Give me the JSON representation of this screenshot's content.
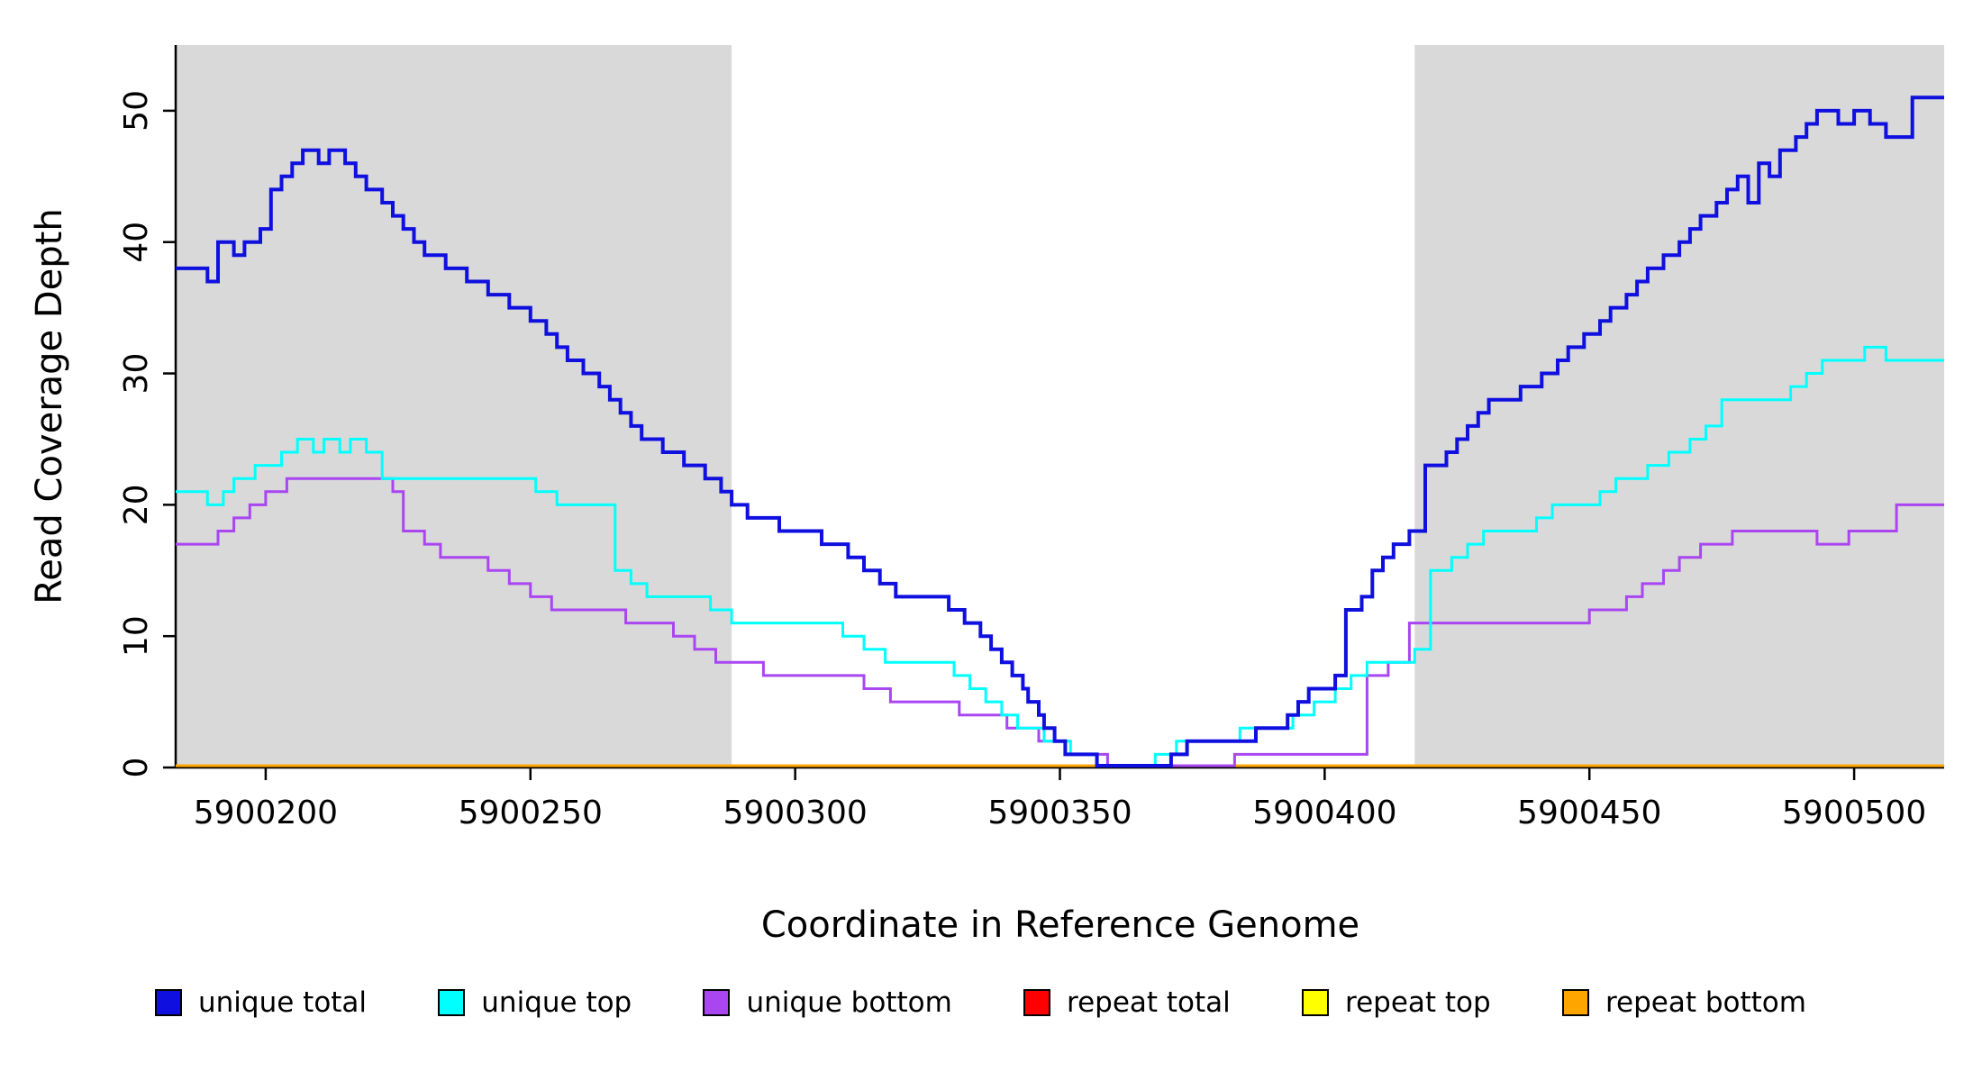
{
  "chart_data": {
    "type": "line",
    "style": "step",
    "title": "",
    "xlabel": "Coordinate in Reference Genome",
    "ylabel": "Read Coverage Depth",
    "xlim": [
      5900183,
      5900517
    ],
    "ylim": [
      0,
      55
    ],
    "x_ticks": [
      5900200,
      5900250,
      5900300,
      5900350,
      5900400,
      5900450,
      5900500
    ],
    "y_ticks": [
      0,
      10,
      20,
      30,
      40,
      50
    ],
    "grid": false,
    "background_color": "#ffffff",
    "shaded_regions": [
      {
        "x0": 5900183,
        "x1": 5900288,
        "color": "#D9D9D9"
      },
      {
        "x0": 5900417,
        "x1": 5900517,
        "color": "#D9D9D9"
      }
    ],
    "legend_position": "bottom",
    "draw_order": [
      3,
      4,
      5,
      2,
      1,
      0
    ],
    "series": [
      {
        "name": "unique total",
        "color": "#0F0FE0",
        "linewidth": 4,
        "points": [
          [
            5900183,
            38
          ],
          [
            5900189,
            37
          ],
          [
            5900191,
            40
          ],
          [
            5900194,
            39
          ],
          [
            5900196,
            40
          ],
          [
            5900199,
            41
          ],
          [
            5900201,
            44
          ],
          [
            5900203,
            45
          ],
          [
            5900205,
            46
          ],
          [
            5900207,
            47
          ],
          [
            5900210,
            46
          ],
          [
            5900212,
            47
          ],
          [
            5900215,
            46
          ],
          [
            5900217,
            45
          ],
          [
            5900219,
            44
          ],
          [
            5900222,
            43
          ],
          [
            5900224,
            42
          ],
          [
            5900226,
            41
          ],
          [
            5900228,
            40
          ],
          [
            5900230,
            39
          ],
          [
            5900234,
            38
          ],
          [
            5900238,
            37
          ],
          [
            5900242,
            36
          ],
          [
            5900246,
            35
          ],
          [
            5900250,
            34
          ],
          [
            5900253,
            33
          ],
          [
            5900255,
            32
          ],
          [
            5900257,
            31
          ],
          [
            5900260,
            30
          ],
          [
            5900263,
            29
          ],
          [
            5900265,
            28
          ],
          [
            5900267,
            27
          ],
          [
            5900269,
            26
          ],
          [
            5900271,
            25
          ],
          [
            5900275,
            24
          ],
          [
            5900279,
            23
          ],
          [
            5900283,
            22
          ],
          [
            5900286,
            21
          ],
          [
            5900288,
            20
          ],
          [
            5900291,
            19
          ],
          [
            5900297,
            18
          ],
          [
            5900305,
            17
          ],
          [
            5900310,
            16
          ],
          [
            5900313,
            15
          ],
          [
            5900316,
            14
          ],
          [
            5900319,
            13
          ],
          [
            5900329,
            12
          ],
          [
            5900332,
            11
          ],
          [
            5900335,
            10
          ],
          [
            5900337,
            9
          ],
          [
            5900339,
            8
          ],
          [
            5900341,
            7
          ],
          [
            5900343,
            6
          ],
          [
            5900344,
            5
          ],
          [
            5900346,
            4
          ],
          [
            5900347,
            3
          ],
          [
            5900349,
            2
          ],
          [
            5900351,
            1
          ],
          [
            5900357,
            0
          ],
          [
            5900371,
            1
          ],
          [
            5900374,
            2
          ],
          [
            5900387,
            3
          ],
          [
            5900393,
            4
          ],
          [
            5900395,
            5
          ],
          [
            5900397,
            6
          ],
          [
            5900402,
            7
          ],
          [
            5900404,
            12
          ],
          [
            5900407,
            13
          ],
          [
            5900409,
            15
          ],
          [
            5900411,
            16
          ],
          [
            5900413,
            17
          ],
          [
            5900416,
            18
          ],
          [
            5900419,
            23
          ],
          [
            5900423,
            24
          ],
          [
            5900425,
            25
          ],
          [
            5900427,
            26
          ],
          [
            5900429,
            27
          ],
          [
            5900431,
            28
          ],
          [
            5900437,
            29
          ],
          [
            5900441,
            30
          ],
          [
            5900444,
            31
          ],
          [
            5900446,
            32
          ],
          [
            5900449,
            33
          ],
          [
            5900452,
            34
          ],
          [
            5900454,
            35
          ],
          [
            5900457,
            36
          ],
          [
            5900459,
            37
          ],
          [
            5900461,
            38
          ],
          [
            5900464,
            39
          ],
          [
            5900467,
            40
          ],
          [
            5900469,
            41
          ],
          [
            5900471,
            42
          ],
          [
            5900474,
            43
          ],
          [
            5900476,
            44
          ],
          [
            5900478,
            45
          ],
          [
            5900480,
            43
          ],
          [
            5900482,
            46
          ],
          [
            5900484,
            45
          ],
          [
            5900486,
            47
          ],
          [
            5900489,
            48
          ],
          [
            5900491,
            49
          ],
          [
            5900493,
            50
          ],
          [
            5900497,
            49
          ],
          [
            5900500,
            50
          ],
          [
            5900503,
            49
          ],
          [
            5900506,
            48
          ],
          [
            5900511,
            51
          ]
        ]
      },
      {
        "name": "unique top",
        "color": "#00FFFF",
        "linewidth": 3,
        "points": [
          [
            5900183,
            21
          ],
          [
            5900189,
            20
          ],
          [
            5900192,
            21
          ],
          [
            5900194,
            22
          ],
          [
            5900198,
            23
          ],
          [
            5900203,
            24
          ],
          [
            5900206,
            25
          ],
          [
            5900209,
            24
          ],
          [
            5900211,
            25
          ],
          [
            5900214,
            24
          ],
          [
            5900216,
            25
          ],
          [
            5900219,
            24
          ],
          [
            5900222,
            22
          ],
          [
            5900251,
            21
          ],
          [
            5900255,
            20
          ],
          [
            5900266,
            15
          ],
          [
            5900269,
            14
          ],
          [
            5900272,
            13
          ],
          [
            5900284,
            12
          ],
          [
            5900288,
            11
          ],
          [
            5900309,
            10
          ],
          [
            5900313,
            9
          ],
          [
            5900317,
            8
          ],
          [
            5900330,
            7
          ],
          [
            5900333,
            6
          ],
          [
            5900336,
            5
          ],
          [
            5900339,
            4
          ],
          [
            5900342,
            3
          ],
          [
            5900347,
            2
          ],
          [
            5900352,
            1
          ],
          [
            5900357,
            0
          ],
          [
            5900368,
            1
          ],
          [
            5900372,
            2
          ],
          [
            5900384,
            3
          ],
          [
            5900394,
            4
          ],
          [
            5900398,
            5
          ],
          [
            5900402,
            6
          ],
          [
            5900405,
            7
          ],
          [
            5900408,
            8
          ],
          [
            5900417,
            9
          ],
          [
            5900420,
            15
          ],
          [
            5900424,
            16
          ],
          [
            5900427,
            17
          ],
          [
            5900430,
            18
          ],
          [
            5900440,
            19
          ],
          [
            5900443,
            20
          ],
          [
            5900452,
            21
          ],
          [
            5900455,
            22
          ],
          [
            5900461,
            23
          ],
          [
            5900465,
            24
          ],
          [
            5900469,
            25
          ],
          [
            5900472,
            26
          ],
          [
            5900475,
            28
          ],
          [
            5900488,
            29
          ],
          [
            5900491,
            30
          ],
          [
            5900494,
            31
          ],
          [
            5900502,
            32
          ],
          [
            5900506,
            31
          ]
        ]
      },
      {
        "name": "unique bottom",
        "color": "#A946F2",
        "linewidth": 3,
        "points": [
          [
            5900183,
            17
          ],
          [
            5900191,
            18
          ],
          [
            5900194,
            19
          ],
          [
            5900197,
            20
          ],
          [
            5900200,
            21
          ],
          [
            5900204,
            22
          ],
          [
            5900224,
            21
          ],
          [
            5900226,
            18
          ],
          [
            5900230,
            17
          ],
          [
            5900233,
            16
          ],
          [
            5900242,
            15
          ],
          [
            5900246,
            14
          ],
          [
            5900250,
            13
          ],
          [
            5900254,
            12
          ],
          [
            5900268,
            11
          ],
          [
            5900277,
            10
          ],
          [
            5900281,
            9
          ],
          [
            5900285,
            8
          ],
          [
            5900294,
            7
          ],
          [
            5900313,
            6
          ],
          [
            5900318,
            5
          ],
          [
            5900331,
            4
          ],
          [
            5900340,
            3
          ],
          [
            5900346,
            2
          ],
          [
            5900351,
            1
          ],
          [
            5900359,
            0
          ],
          [
            5900383,
            1
          ],
          [
            5900408,
            7
          ],
          [
            5900412,
            8
          ],
          [
            5900416,
            11
          ],
          [
            5900450,
            12
          ],
          [
            5900457,
            13
          ],
          [
            5900460,
            14
          ],
          [
            5900464,
            15
          ],
          [
            5900467,
            16
          ],
          [
            5900471,
            17
          ],
          [
            5900477,
            18
          ],
          [
            5900493,
            17
          ],
          [
            5900499,
            18
          ],
          [
            5900508,
            20
          ]
        ]
      },
      {
        "name": "repeat total",
        "color": "#FF0000",
        "linewidth": 3,
        "points": [
          [
            5900183,
            0
          ]
        ]
      },
      {
        "name": "repeat top",
        "color": "#FFFF00",
        "linewidth": 3,
        "points": [
          [
            5900183,
            0
          ]
        ]
      },
      {
        "name": "repeat bottom",
        "color": "#FFA500",
        "linewidth": 3,
        "points": [
          [
            5900183,
            0
          ]
        ]
      }
    ]
  }
}
